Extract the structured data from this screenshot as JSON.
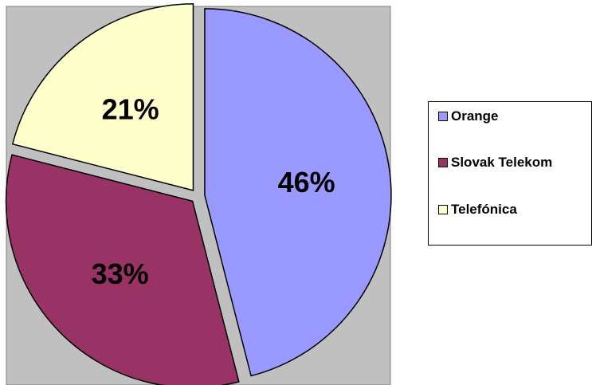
{
  "chart_data": {
    "type": "pie",
    "categories": [
      "Orange",
      "Slovak Telekom",
      "Telefónica"
    ],
    "values": [
      46,
      33,
      21
    ],
    "value_labels": [
      "46%",
      "33%",
      "21%"
    ],
    "colors": [
      "#9999ff",
      "#993366",
      "#ffffcc"
    ],
    "plot_background": "#c0c0c0",
    "exploded": true,
    "legend_position": "right",
    "title": ""
  }
}
